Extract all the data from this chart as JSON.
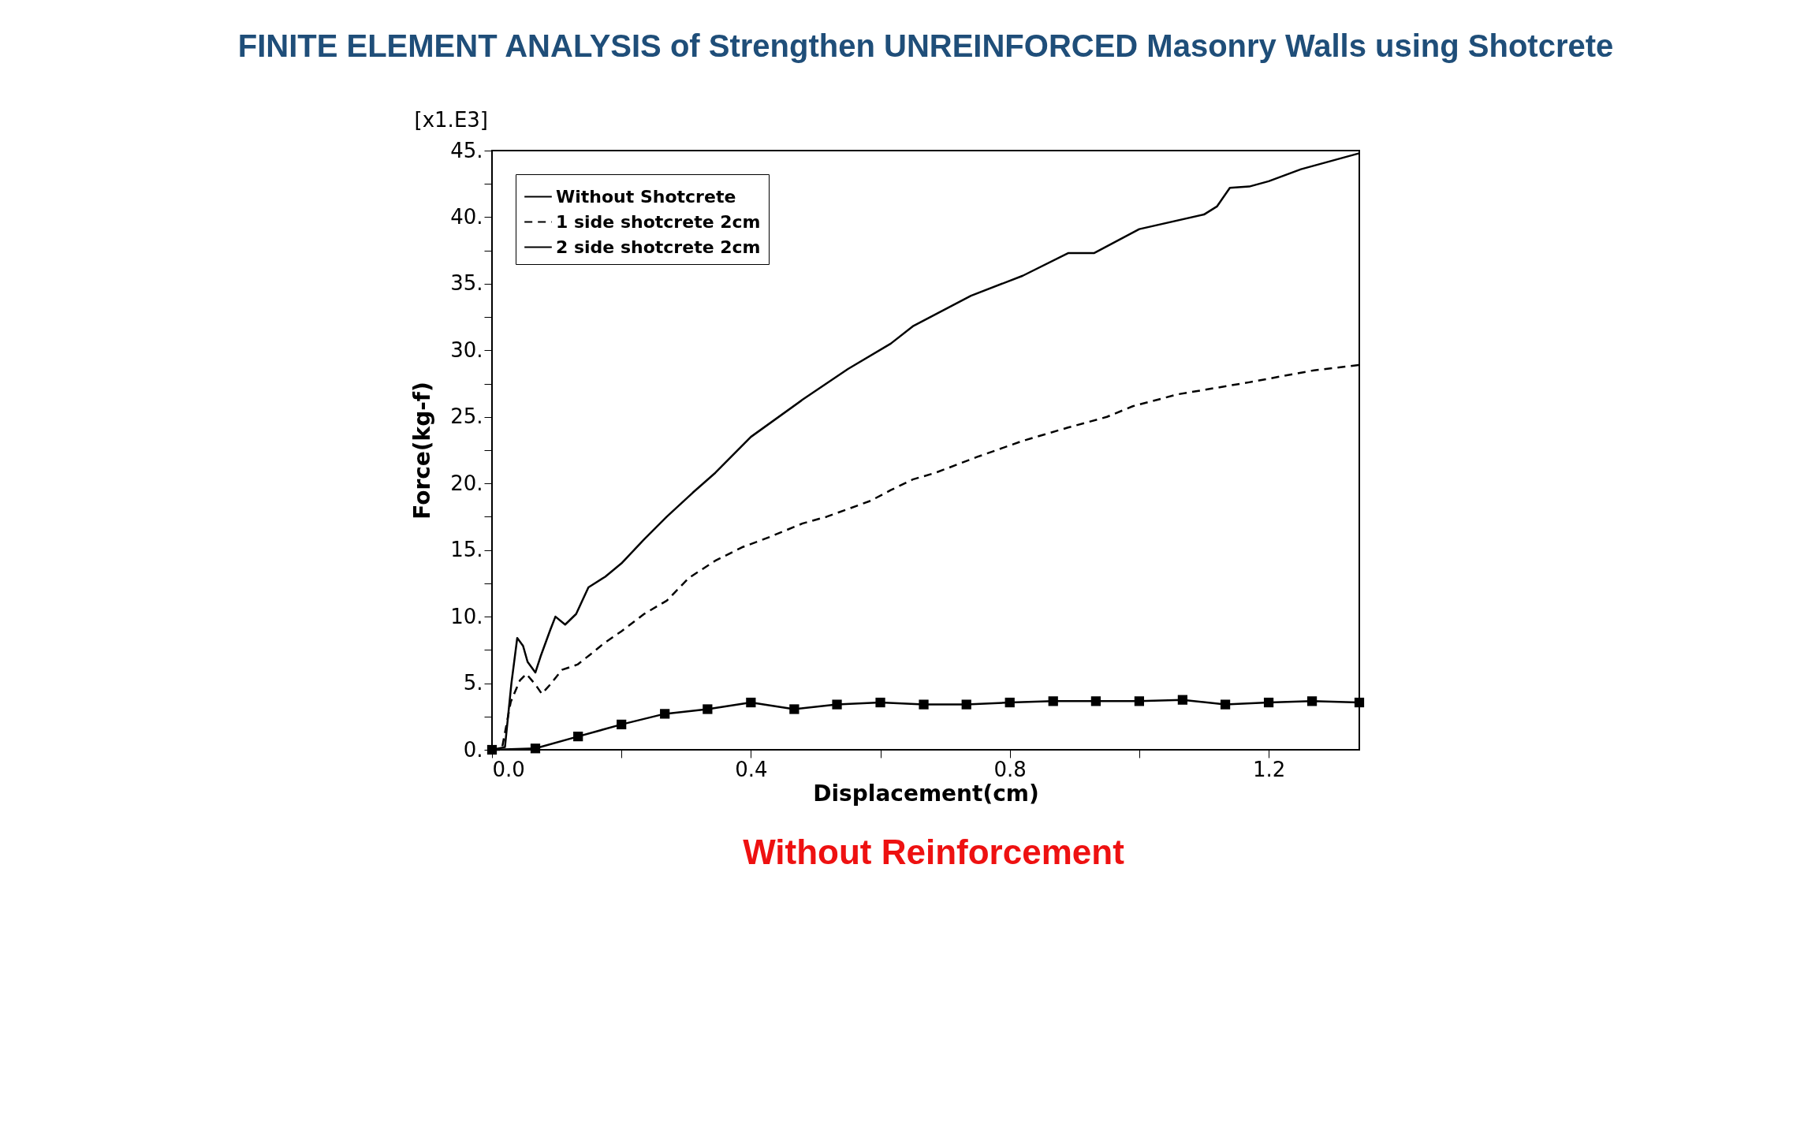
{
  "chart_data": {
    "type": "line",
    "title": "FINITE ELEMENT ANALYSIS of Strengthen UNREINFORCED Masonry Walls using Shotcrete",
    "xlabel": "Displacement(cm)",
    "ylabel": "Force(kg-f)",
    "annotations": [
      "[x1.E3]",
      "Without Reinforcement"
    ],
    "xlim": [
      0,
      1.34
    ],
    "ylim": [
      0,
      45
    ],
    "xticks": [
      {
        "value": 0,
        "label": "0.0"
      },
      {
        "value": 0.2,
        "label": null
      },
      {
        "value": 0.4,
        "label": "0.4"
      },
      {
        "value": 0.6,
        "label": null
      },
      {
        "value": 0.8,
        "label": "0.8"
      },
      {
        "value": 1.0,
        "label": null
      },
      {
        "value": 1.2,
        "label": "1.2"
      }
    ],
    "yticks": [
      {
        "value": 0,
        "label": "0."
      },
      {
        "value": 2.5,
        "label": null
      },
      {
        "value": 5,
        "label": "5."
      },
      {
        "value": 7.5,
        "label": null
      },
      {
        "value": 10,
        "label": "10."
      },
      {
        "value": 12.5,
        "label": null
      },
      {
        "value": 15,
        "label": "15."
      },
      {
        "value": 17.5,
        "label": null
      },
      {
        "value": 20,
        "label": "20."
      },
      {
        "value": 22.5,
        "label": null
      },
      {
        "value": 25,
        "label": "25."
      },
      {
        "value": 27.5,
        "label": null
      },
      {
        "value": 30,
        "label": "30."
      },
      {
        "value": 32.5,
        "label": null
      },
      {
        "value": 35,
        "label": "35."
      },
      {
        "value": 37.5,
        "label": null
      },
      {
        "value": 40,
        "label": "40."
      },
      {
        "value": 42.5,
        "label": null
      },
      {
        "value": 45,
        "label": "45."
      }
    ],
    "grid": false,
    "legend": "top left",
    "series": [
      {
        "name": "Without Shotcrete",
        "color": "#000000",
        "marker": "square",
        "line_style": "solid",
        "x": [
          0,
          0.067,
          0.133,
          0.2,
          0.267,
          0.333,
          0.4,
          0.467,
          0.533,
          0.6,
          0.667,
          0.733,
          0.8,
          0.867,
          0.933,
          1.0,
          1.067,
          1.133,
          1.2,
          1.267,
          1.34
        ],
        "values": [
          0,
          0.1,
          1.0,
          1.9,
          2.7,
          3.05,
          3.55,
          3.05,
          3.4,
          3.55,
          3.4,
          3.4,
          3.55,
          3.65,
          3.65,
          3.65,
          3.75,
          3.4,
          3.55,
          3.65,
          3.55
        ]
      },
      {
        "name": "1 side shotcrete 2cm",
        "color": "#000000",
        "marker": "none",
        "line_style": "dashed",
        "x": [
          0,
          0.015,
          0.029,
          0.043,
          0.053,
          0.067,
          0.077,
          0.09,
          0.108,
          0.132,
          0.153,
          0.173,
          0.2,
          0.235,
          0.27,
          0.304,
          0.345,
          0.386,
          0.43,
          0.48,
          0.517,
          0.585,
          0.616,
          0.65,
          0.685,
          0.75,
          0.82,
          0.89,
          0.95,
          0.99,
          1.06,
          1.17,
          1.27,
          1.34
        ],
        "values": [
          0,
          0,
          3.6,
          5.2,
          5.7,
          4.9,
          4.2,
          4.9,
          6.0,
          6.4,
          7.2,
          8.0,
          8.9,
          10.2,
          11.2,
          12.9,
          14.2,
          15.2,
          16.0,
          17.0,
          17.5,
          18.7,
          19.5,
          20.3,
          20.8,
          22.0,
          23.2,
          24.2,
          25.0,
          25.8,
          26.7,
          27.6,
          28.5,
          28.9
        ]
      },
      {
        "name": "2 side shotcrete 2cm",
        "color": "#000000",
        "marker": "none",
        "line_style": "solid",
        "x": [
          0,
          0.02,
          0.03,
          0.039,
          0.048,
          0.055,
          0.067,
          0.075,
          0.09,
          0.098,
          0.113,
          0.13,
          0.149,
          0.175,
          0.2,
          0.235,
          0.27,
          0.31,
          0.345,
          0.4,
          0.48,
          0.55,
          0.616,
          0.65,
          0.74,
          0.82,
          0.89,
          0.93,
          1.0,
          1.1,
          1.12,
          1.14,
          1.17,
          1.2,
          1.25,
          1.34
        ],
        "values": [
          0,
          0.2,
          5.0,
          8.4,
          7.8,
          6.6,
          5.8,
          7.0,
          9.0,
          10.0,
          9.4,
          10.2,
          12.2,
          13.0,
          14.0,
          15.8,
          17.5,
          19.3,
          20.8,
          23.5,
          26.3,
          28.6,
          30.5,
          31.8,
          34.1,
          35.6,
          37.3,
          37.3,
          39.1,
          40.2,
          40.8,
          42.2,
          42.3,
          42.7,
          43.6,
          44.8
        ]
      }
    ]
  }
}
